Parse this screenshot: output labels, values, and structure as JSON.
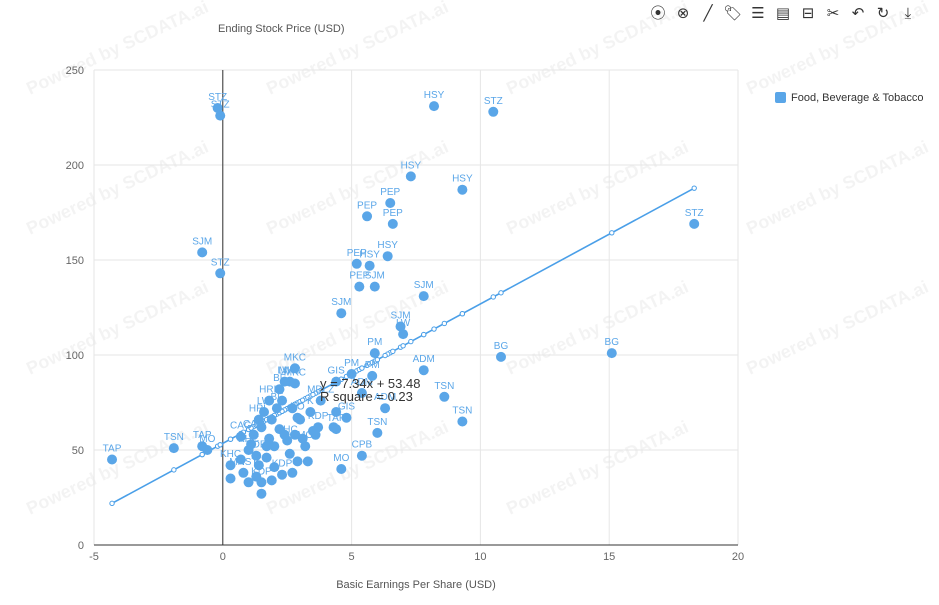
{
  "toolbar": [
    {
      "name": "restore-icon",
      "glyph": "⦿"
    },
    {
      "name": "clear-icon",
      "glyph": "⊗"
    },
    {
      "name": "draw-line-icon",
      "glyph": "╱"
    },
    {
      "name": "tag-icon",
      "glyph": "🏷"
    },
    {
      "name": "data-view-icon",
      "glyph": "☰"
    },
    {
      "name": "comment-icon",
      "glyph": "▤"
    },
    {
      "name": "bookmark-icon",
      "glyph": "⊟"
    },
    {
      "name": "cut-icon",
      "glyph": "✂"
    },
    {
      "name": "undo-icon",
      "glyph": "↶"
    },
    {
      "name": "refresh-icon",
      "glyph": "↻"
    },
    {
      "name": "download-icon",
      "glyph": "⤓"
    }
  ],
  "watermark": "Powered by SCDATA.ai",
  "colors": {
    "series": "#5aa6e8",
    "trend": "#4a9fe8",
    "grid": "#e6e6e6",
    "axis": "#333333"
  },
  "chart_data": {
    "type": "scatter",
    "xlabel": "Basic Earnings Per Share (USD)",
    "ylabel": "Ending Stock Price (USD)",
    "xlim": [
      -5,
      20
    ],
    "ylim": [
      0,
      250
    ],
    "xticks": [
      -5,
      0,
      5,
      10,
      15,
      20
    ],
    "yticks": [
      0,
      50,
      100,
      150,
      200,
      250
    ],
    "legend": {
      "position": "top-right",
      "entries": [
        "Food, Beverage & Tobacco"
      ]
    },
    "trendline": {
      "equation": "y = 7.34x + 53.48",
      "r_square": "R square = 0.23",
      "slope": 7.34,
      "intercept": 53.48
    },
    "series": [
      {
        "name": "Food, Beverage & Tobacco",
        "points": [
          {
            "x": -4.3,
            "y": 45,
            "label": "TAP"
          },
          {
            "x": -1.9,
            "y": 51,
            "label": "TSN"
          },
          {
            "x": -0.8,
            "y": 52,
            "label": "TAP"
          },
          {
            "x": -0.6,
            "y": 50,
            "label": "MO"
          },
          {
            "x": -0.8,
            "y": 154,
            "label": "SJM"
          },
          {
            "x": -0.1,
            "y": 143,
            "label": "STZ"
          },
          {
            "x": -0.2,
            "y": 230,
            "label": "STZ"
          },
          {
            "x": -0.1,
            "y": 226,
            "label": "STZ"
          },
          {
            "x": 8.2,
            "y": 231,
            "label": "HSY"
          },
          {
            "x": 10.5,
            "y": 228,
            "label": "STZ"
          },
          {
            "x": 7.3,
            "y": 194,
            "label": "HSY"
          },
          {
            "x": 9.3,
            "y": 187,
            "label": "HSY"
          },
          {
            "x": 5.6,
            "y": 173,
            "label": "PEP"
          },
          {
            "x": 6.5,
            "y": 180,
            "label": "PEP"
          },
          {
            "x": 6.6,
            "y": 169,
            "label": "PEP"
          },
          {
            "x": 18.3,
            "y": 169,
            "label": "STZ"
          },
          {
            "x": 5.2,
            "y": 148,
            "label": "PEP"
          },
          {
            "x": 5.7,
            "y": 147,
            "label": "HSY"
          },
          {
            "x": 6.4,
            "y": 152,
            "label": "HSY"
          },
          {
            "x": 5.3,
            "y": 136,
            "label": "PEP"
          },
          {
            "x": 5.9,
            "y": 136,
            "label": "SJM"
          },
          {
            "x": 7.8,
            "y": 131,
            "label": "SJM"
          },
          {
            "x": 4.6,
            "y": 122,
            "label": "SJM"
          },
          {
            "x": 6.9,
            "y": 115,
            "label": "SJM"
          },
          {
            "x": 7.0,
            "y": 111,
            "label": "LW"
          },
          {
            "x": 5.9,
            "y": 101,
            "label": "PM"
          },
          {
            "x": 10.8,
            "y": 99,
            "label": "BG"
          },
          {
            "x": 15.1,
            "y": 101,
            "label": "BG"
          },
          {
            "x": 7.8,
            "y": 92,
            "label": "ADM"
          },
          {
            "x": 5.0,
            "y": 90,
            "label": "PM"
          },
          {
            "x": 5.8,
            "y": 89,
            "label": "PM"
          },
          {
            "x": 2.8,
            "y": 93,
            "label": "MKC"
          },
          {
            "x": 2.6,
            "y": 86,
            "label": "MKC"
          },
          {
            "x": 2.8,
            "y": 85,
            "label": "MKC"
          },
          {
            "x": 2.2,
            "y": 82,
            "label": "BF"
          },
          {
            "x": 2.4,
            "y": 86,
            "label": "LW"
          },
          {
            "x": 4.4,
            "y": 86,
            "label": "GIS"
          },
          {
            "x": 8.6,
            "y": 78,
            "label": "TSN"
          },
          {
            "x": 5.4,
            "y": 80,
            "label": "ADM"
          },
          {
            "x": 6.3,
            "y": 72,
            "label": "ADM"
          },
          {
            "x": 9.3,
            "y": 65,
            "label": "TSN"
          },
          {
            "x": 6.0,
            "y": 59,
            "label": "TSN"
          },
          {
            "x": 3.8,
            "y": 76,
            "label": "MDLZ"
          },
          {
            "x": 3.4,
            "y": 70,
            "label": "K"
          },
          {
            "x": 4.8,
            "y": 67,
            "label": "GIS"
          },
          {
            "x": 4.4,
            "y": 61,
            "label": "TAP"
          },
          {
            "x": 5.4,
            "y": 47,
            "label": "CPB"
          },
          {
            "x": 4.6,
            "y": 40,
            "label": "MO"
          },
          {
            "x": 1.8,
            "y": 76,
            "label": "HRL"
          },
          {
            "x": 2.1,
            "y": 72,
            "label": "BF"
          },
          {
            "x": 1.6,
            "y": 70,
            "label": "LW"
          },
          {
            "x": 1.4,
            "y": 66,
            "label": "HRL"
          },
          {
            "x": 2.9,
            "y": 67,
            "label": "KO"
          },
          {
            "x": 3.7,
            "y": 62,
            "label": "KDP"
          },
          {
            "x": 1.2,
            "y": 58,
            "label": "CAG"
          },
          {
            "x": 0.7,
            "y": 57,
            "label": "CAG"
          },
          {
            "x": 2.5,
            "y": 55,
            "label": "KHC"
          },
          {
            "x": 3.2,
            "y": 52,
            "label": "MO"
          },
          {
            "x": 1.0,
            "y": 50,
            "label": "KHC"
          },
          {
            "x": 1.3,
            "y": 47,
            "label": "KDP"
          },
          {
            "x": 0.3,
            "y": 42,
            "label": "KHC"
          },
          {
            "x": 0.8,
            "y": 38,
            "label": "MNST"
          },
          {
            "x": 2.3,
            "y": 37,
            "label": "KDP"
          },
          {
            "x": 1.5,
            "y": 33,
            "label": "KDP"
          },
          {
            "x": 0.3,
            "y": 35,
            "label": ""
          },
          {
            "x": 1.0,
            "y": 33,
            "label": ""
          },
          {
            "x": 1.5,
            "y": 27,
            "label": ""
          },
          {
            "x": 1.9,
            "y": 34,
            "label": ""
          },
          {
            "x": 2.7,
            "y": 38,
            "label": ""
          },
          {
            "x": 1.3,
            "y": 36,
            "label": ""
          },
          {
            "x": 2.0,
            "y": 41,
            "label": ""
          },
          {
            "x": 1.7,
            "y": 46,
            "label": ""
          },
          {
            "x": 2.6,
            "y": 48,
            "label": ""
          },
          {
            "x": 3.3,
            "y": 44,
            "label": ""
          },
          {
            "x": 2.9,
            "y": 44,
            "label": ""
          },
          {
            "x": 3.6,
            "y": 58,
            "label": ""
          },
          {
            "x": 4.4,
            "y": 70,
            "label": ""
          },
          {
            "x": 4.3,
            "y": 62,
            "label": ""
          },
          {
            "x": 3.0,
            "y": 66,
            "label": ""
          },
          {
            "x": 2.2,
            "y": 61,
            "label": ""
          },
          {
            "x": 1.8,
            "y": 56,
            "label": ""
          },
          {
            "x": 2.4,
            "y": 58,
            "label": ""
          },
          {
            "x": 1.1,
            "y": 53,
            "label": ""
          },
          {
            "x": 2.0,
            "y": 52,
            "label": ""
          },
          {
            "x": 2.8,
            "y": 58,
            "label": ""
          },
          {
            "x": 1.5,
            "y": 62,
            "label": ""
          },
          {
            "x": 1.9,
            "y": 66,
            "label": ""
          },
          {
            "x": 2.7,
            "y": 72,
            "label": ""
          },
          {
            "x": 2.3,
            "y": 76,
            "label": ""
          },
          {
            "x": 0.7,
            "y": 45,
            "label": ""
          },
          {
            "x": 1.4,
            "y": 42,
            "label": ""
          },
          {
            "x": 1.7,
            "y": 52,
            "label": ""
          },
          {
            "x": 3.5,
            "y": 60,
            "label": ""
          },
          {
            "x": 3.1,
            "y": 56,
            "label": ""
          }
        ]
      }
    ]
  }
}
